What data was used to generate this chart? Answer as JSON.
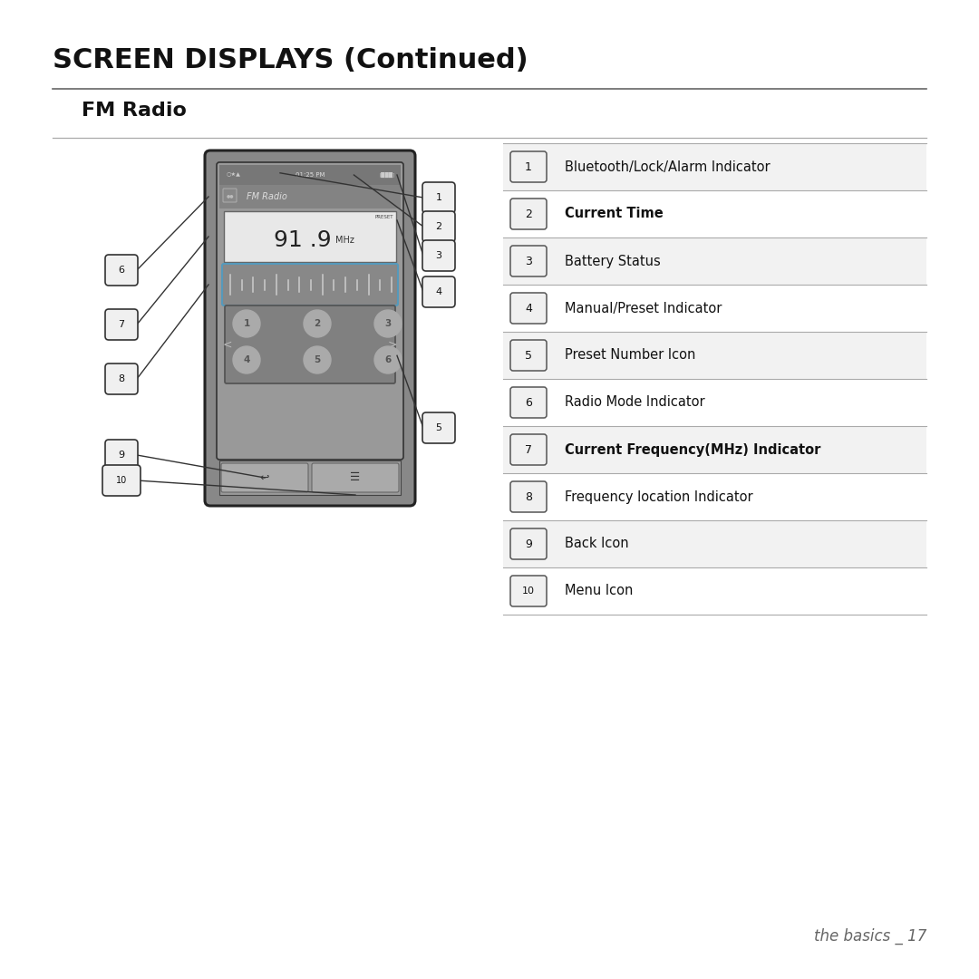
{
  "title": "SCREEN DISPLAYS (Continued)",
  "subtitle": "FM Radio",
  "bg_color": "#ffffff",
  "table_items": [
    {
      "num": "1",
      "label": "Bluetooth/Lock/Alarm Indicator",
      "bold": false
    },
    {
      "num": "2",
      "label": "Current Time",
      "bold": true
    },
    {
      "num": "3",
      "label": "Battery Status",
      "bold": false
    },
    {
      "num": "4",
      "label": "Manual/Preset Indicator",
      "bold": false
    },
    {
      "num": "5",
      "label": "Preset Number Icon",
      "bold": false
    },
    {
      "num": "6",
      "label": "Radio Mode Indicator",
      "bold": false
    },
    {
      "num": "7",
      "label": "Current Frequency(MHz) Indicator",
      "bold": true
    },
    {
      "num": "8",
      "label": "Frequency location Indicator",
      "bold": false
    },
    {
      "num": "9",
      "label": "Back Icon",
      "bold": false
    },
    {
      "num": "10",
      "label": "Menu Icon",
      "bold": false
    }
  ],
  "footer": "the basics _ 17",
  "title_fontsize": 22,
  "subtitle_fontsize": 16,
  "label_fontsize": 10.5
}
